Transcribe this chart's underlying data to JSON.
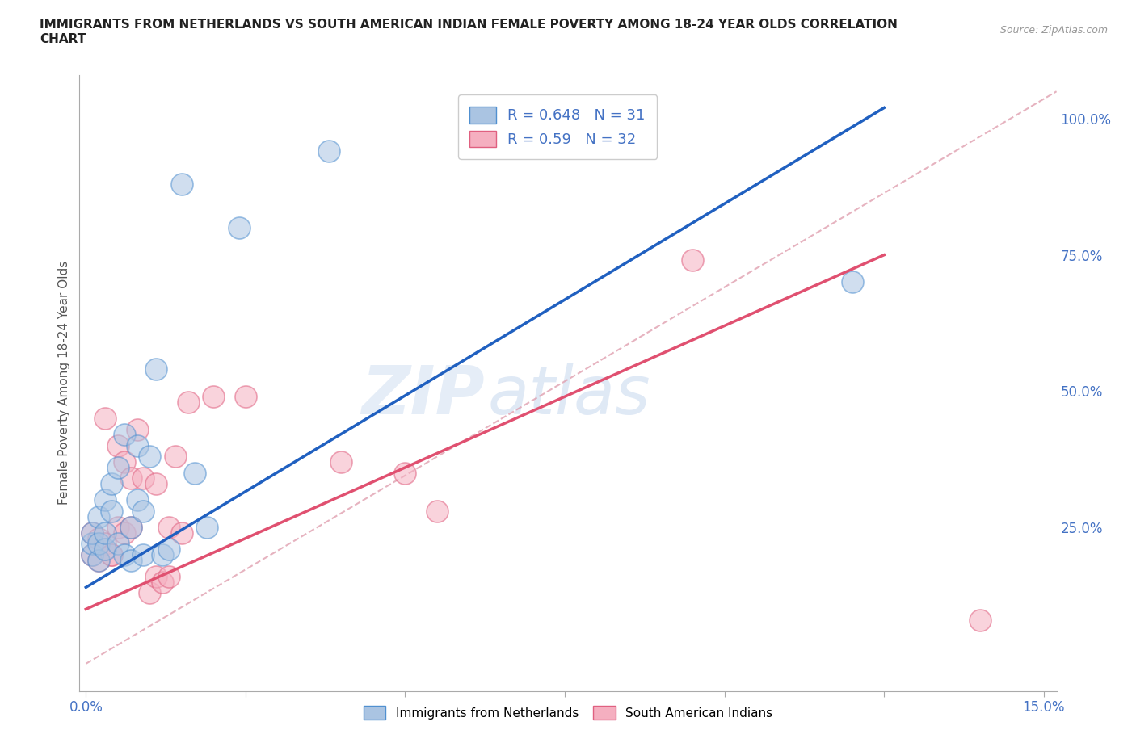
{
  "title": "IMMIGRANTS FROM NETHERLANDS VS SOUTH AMERICAN INDIAN FEMALE POVERTY AMONG 18-24 YEAR OLDS CORRELATION\nCHART",
  "source_text": "Source: ZipAtlas.com",
  "ylabel": "Female Poverty Among 18-24 Year Olds",
  "xlim": [
    -0.001,
    0.152
  ],
  "ylim": [
    -0.05,
    1.08
  ],
  "xticks": [
    0.0,
    0.05,
    0.1,
    0.15
  ],
  "xticklabels_show": [
    "0.0%",
    "15.0%"
  ],
  "ytick_positions": [
    0.0,
    0.25,
    0.5,
    0.75,
    1.0
  ],
  "ytick_labels": [
    "",
    "25.0%",
    "50.0%",
    "75.0%",
    "100.0%"
  ],
  "blue_R": 0.648,
  "blue_N": 31,
  "pink_R": 0.59,
  "pink_N": 32,
  "blue_color": "#aac4e2",
  "pink_color": "#f5afc0",
  "blue_edge_color": "#5090d0",
  "pink_edge_color": "#e06080",
  "blue_line_color": "#2060c0",
  "pink_line_color": "#e05070",
  "blue_line_x0": 0.0,
  "blue_line_y0": 0.14,
  "blue_line_x1": 0.125,
  "blue_line_y1": 1.02,
  "pink_line_x0": 0.0,
  "pink_line_y0": 0.1,
  "pink_line_x1": 0.125,
  "pink_line_y1": 0.75,
  "dash_color": "#e0a0b0",
  "blue_scatter_x": [
    0.001,
    0.001,
    0.001,
    0.002,
    0.002,
    0.002,
    0.003,
    0.003,
    0.003,
    0.004,
    0.004,
    0.005,
    0.005,
    0.006,
    0.006,
    0.007,
    0.007,
    0.008,
    0.008,
    0.009,
    0.009,
    0.01,
    0.011,
    0.012,
    0.013,
    0.015,
    0.017,
    0.019,
    0.024,
    0.038,
    0.12
  ],
  "blue_scatter_y": [
    0.2,
    0.22,
    0.24,
    0.19,
    0.22,
    0.27,
    0.21,
    0.24,
    0.3,
    0.28,
    0.33,
    0.22,
    0.36,
    0.2,
    0.42,
    0.19,
    0.25,
    0.3,
    0.4,
    0.2,
    0.28,
    0.38,
    0.54,
    0.2,
    0.21,
    0.88,
    0.35,
    0.25,
    0.8,
    0.94,
    0.7
  ],
  "pink_scatter_x": [
    0.001,
    0.001,
    0.002,
    0.002,
    0.003,
    0.003,
    0.004,
    0.004,
    0.005,
    0.005,
    0.006,
    0.006,
    0.007,
    0.007,
    0.008,
    0.009,
    0.01,
    0.011,
    0.011,
    0.012,
    0.013,
    0.013,
    0.014,
    0.015,
    0.016,
    0.02,
    0.025,
    0.04,
    0.05,
    0.055,
    0.095,
    0.14
  ],
  "pink_scatter_y": [
    0.2,
    0.24,
    0.19,
    0.23,
    0.22,
    0.45,
    0.2,
    0.2,
    0.25,
    0.4,
    0.24,
    0.37,
    0.25,
    0.34,
    0.43,
    0.34,
    0.13,
    0.33,
    0.16,
    0.15,
    0.16,
    0.25,
    0.38,
    0.24,
    0.48,
    0.49,
    0.49,
    0.37,
    0.35,
    0.28,
    0.74,
    0.08
  ],
  "watermark_zip": "ZIP",
  "watermark_atlas": "atlas",
  "background_color": "#ffffff",
  "grid_color": "#cccccc"
}
